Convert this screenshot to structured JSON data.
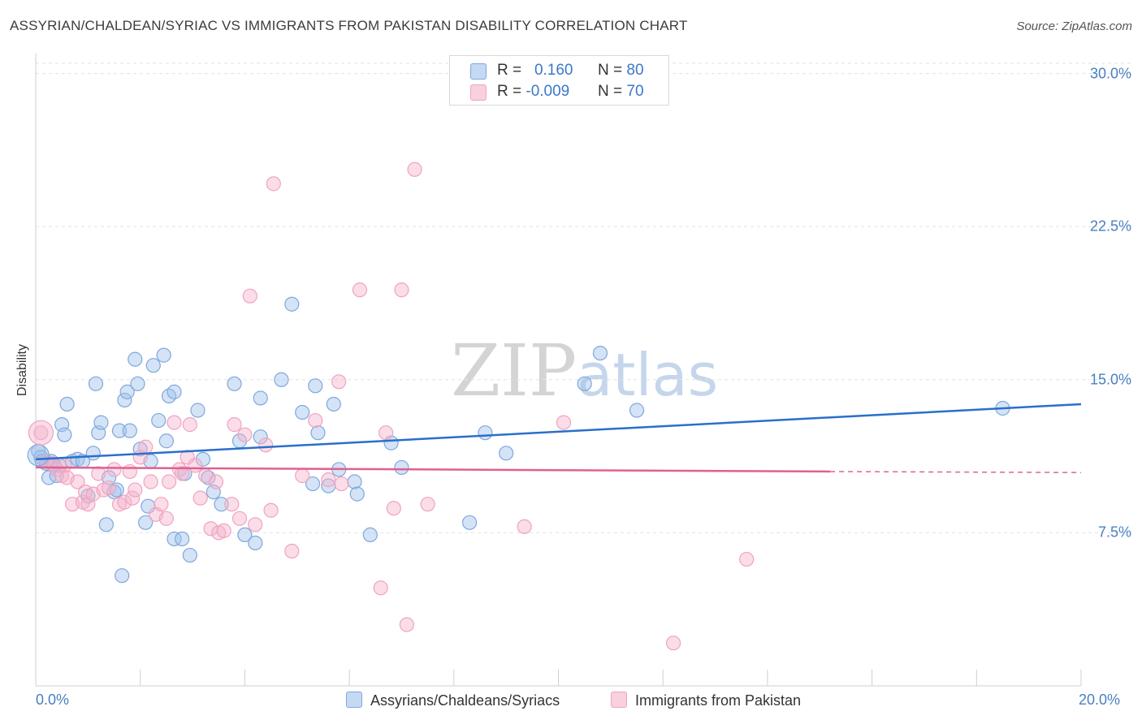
{
  "chart_data": {
    "type": "scatter",
    "title": "ASSYRIAN/CHALDEAN/SYRIAC VS IMMIGRANTS FROM PAKISTAN DISABILITY CORRELATION CHART",
    "source": "Source: ZipAtlas.com",
    "xlabel": "",
    "ylabel": "Disability",
    "xlim": [
      0,
      20
    ],
    "ylim": [
      0,
      30.5
    ],
    "x_tick_labels": [
      "0.0%",
      "20.0%"
    ],
    "y_ticks": [
      7.5,
      15.0,
      22.5,
      30.0
    ],
    "y_tick_labels": [
      "7.5%",
      "15.0%",
      "22.5%",
      "30.0%"
    ],
    "watermark": {
      "zip": "ZIP",
      "atlas": "atlas"
    },
    "series": [
      {
        "name": "Assyrians/Chaldeans/Syriacs",
        "color": "#7fa8dc",
        "line_color": "#2a6fcb",
        "R": "0.160",
        "N": "80",
        "trend": {
          "x0": 0,
          "y0": 11.1,
          "x1": 20,
          "y1": 13.8
        },
        "points": [
          [
            0.05,
            11.5
          ],
          [
            0.1,
            11.2
          ],
          [
            0.12,
            11.0
          ],
          [
            0.2,
            10.9
          ],
          [
            0.25,
            10.2
          ],
          [
            0.3,
            11.0
          ],
          [
            0.35,
            10.8
          ],
          [
            0.4,
            10.3
          ],
          [
            0.45,
            10.8
          ],
          [
            0.5,
            12.8
          ],
          [
            0.55,
            12.3
          ],
          [
            0.6,
            13.8
          ],
          [
            0.7,
            11.0
          ],
          [
            0.8,
            11.1
          ],
          [
            0.9,
            11.0
          ],
          [
            1.0,
            9.3
          ],
          [
            1.1,
            11.4
          ],
          [
            1.15,
            14.8
          ],
          [
            1.2,
            12.4
          ],
          [
            1.25,
            12.9
          ],
          [
            1.35,
            7.9
          ],
          [
            1.4,
            10.2
          ],
          [
            1.5,
            9.5
          ],
          [
            1.55,
            9.6
          ],
          [
            1.6,
            12.5
          ],
          [
            1.65,
            5.4
          ],
          [
            1.7,
            14.0
          ],
          [
            1.75,
            14.4
          ],
          [
            1.8,
            12.5
          ],
          [
            1.9,
            16.0
          ],
          [
            1.95,
            14.8
          ],
          [
            2.0,
            11.6
          ],
          [
            2.1,
            8.0
          ],
          [
            2.15,
            8.8
          ],
          [
            2.2,
            11.0
          ],
          [
            2.25,
            15.7
          ],
          [
            2.35,
            13.0
          ],
          [
            2.45,
            16.2
          ],
          [
            2.5,
            12.0
          ],
          [
            2.55,
            14.2
          ],
          [
            2.65,
            14.4
          ],
          [
            2.65,
            7.2
          ],
          [
            2.8,
            7.2
          ],
          [
            2.85,
            10.4
          ],
          [
            2.95,
            6.4
          ],
          [
            3.1,
            13.5
          ],
          [
            3.2,
            11.1
          ],
          [
            3.3,
            10.2
          ],
          [
            3.4,
            9.5
          ],
          [
            3.55,
            8.9
          ],
          [
            3.8,
            14.8
          ],
          [
            3.9,
            12.0
          ],
          [
            4.0,
            7.4
          ],
          [
            4.2,
            7.0
          ],
          [
            4.3,
            12.2
          ],
          [
            4.3,
            14.1
          ],
          [
            4.7,
            15.0
          ],
          [
            4.9,
            18.7
          ],
          [
            5.1,
            13.4
          ],
          [
            5.3,
            9.9
          ],
          [
            5.35,
            14.7
          ],
          [
            5.4,
            12.4
          ],
          [
            5.6,
            9.8
          ],
          [
            5.7,
            13.8
          ],
          [
            5.8,
            10.6
          ],
          [
            6.1,
            10.0
          ],
          [
            6.15,
            9.4
          ],
          [
            6.4,
            7.4
          ],
          [
            6.8,
            11.9
          ],
          [
            7.0,
            10.7
          ],
          [
            8.3,
            8.0
          ],
          [
            8.6,
            12.4
          ],
          [
            9.0,
            11.4
          ],
          [
            10.5,
            14.8
          ],
          [
            10.8,
            16.3
          ],
          [
            11.5,
            13.5
          ],
          [
            18.5,
            13.6
          ]
        ]
      },
      {
        "name": "Immigrants from Pakistan",
        "color": "#f0a3bf",
        "line_color": "#e0608f",
        "R": "-0.009",
        "N": "70",
        "trend": {
          "x0": 0,
          "y0": 10.7,
          "x1": 15.2,
          "y1": 10.5,
          "dash_x1": 20,
          "dash_y1": 10.45
        },
        "points": [
          [
            0.1,
            12.4
          ],
          [
            0.2,
            11.0
          ],
          [
            0.3,
            10.9
          ],
          [
            0.4,
            10.6
          ],
          [
            0.5,
            10.3
          ],
          [
            0.55,
            10.8
          ],
          [
            0.6,
            10.2
          ],
          [
            0.7,
            8.9
          ],
          [
            0.8,
            10.0
          ],
          [
            0.9,
            9.0
          ],
          [
            0.95,
            9.5
          ],
          [
            1.0,
            8.9
          ],
          [
            1.1,
            9.4
          ],
          [
            1.2,
            10.4
          ],
          [
            1.3,
            9.6
          ],
          [
            1.4,
            9.7
          ],
          [
            1.5,
            10.6
          ],
          [
            1.6,
            8.9
          ],
          [
            1.7,
            9.0
          ],
          [
            1.8,
            10.5
          ],
          [
            1.85,
            9.2
          ],
          [
            1.9,
            9.6
          ],
          [
            2.0,
            11.2
          ],
          [
            2.1,
            11.7
          ],
          [
            2.2,
            10.0
          ],
          [
            2.3,
            8.4
          ],
          [
            2.4,
            8.9
          ],
          [
            2.5,
            8.2
          ],
          [
            2.55,
            10.0
          ],
          [
            2.65,
            12.9
          ],
          [
            2.75,
            10.6
          ],
          [
            2.8,
            10.4
          ],
          [
            2.9,
            11.2
          ],
          [
            2.95,
            12.8
          ],
          [
            3.05,
            10.8
          ],
          [
            3.15,
            9.2
          ],
          [
            3.25,
            10.3
          ],
          [
            3.35,
            7.7
          ],
          [
            3.45,
            10.0
          ],
          [
            3.5,
            7.5
          ],
          [
            3.6,
            7.6
          ],
          [
            3.75,
            8.9
          ],
          [
            3.8,
            12.8
          ],
          [
            3.9,
            8.2
          ],
          [
            4.0,
            12.3
          ],
          [
            4.1,
            19.1
          ],
          [
            4.2,
            7.9
          ],
          [
            4.4,
            11.8
          ],
          [
            4.5,
            8.6
          ],
          [
            4.55,
            24.6
          ],
          [
            4.9,
            6.6
          ],
          [
            5.1,
            10.3
          ],
          [
            5.35,
            13.0
          ],
          [
            5.6,
            10.1
          ],
          [
            5.8,
            14.9
          ],
          [
            5.85,
            9.9
          ],
          [
            6.2,
            19.4
          ],
          [
            6.6,
            4.8
          ],
          [
            6.7,
            12.4
          ],
          [
            6.85,
            8.7
          ],
          [
            7.0,
            19.4
          ],
          [
            7.1,
            3.0
          ],
          [
            7.25,
            25.3
          ],
          [
            7.5,
            8.9
          ],
          [
            9.35,
            7.8
          ],
          [
            10.1,
            12.9
          ],
          [
            12.2,
            2.1
          ],
          [
            13.6,
            6.2
          ]
        ]
      }
    ]
  }
}
